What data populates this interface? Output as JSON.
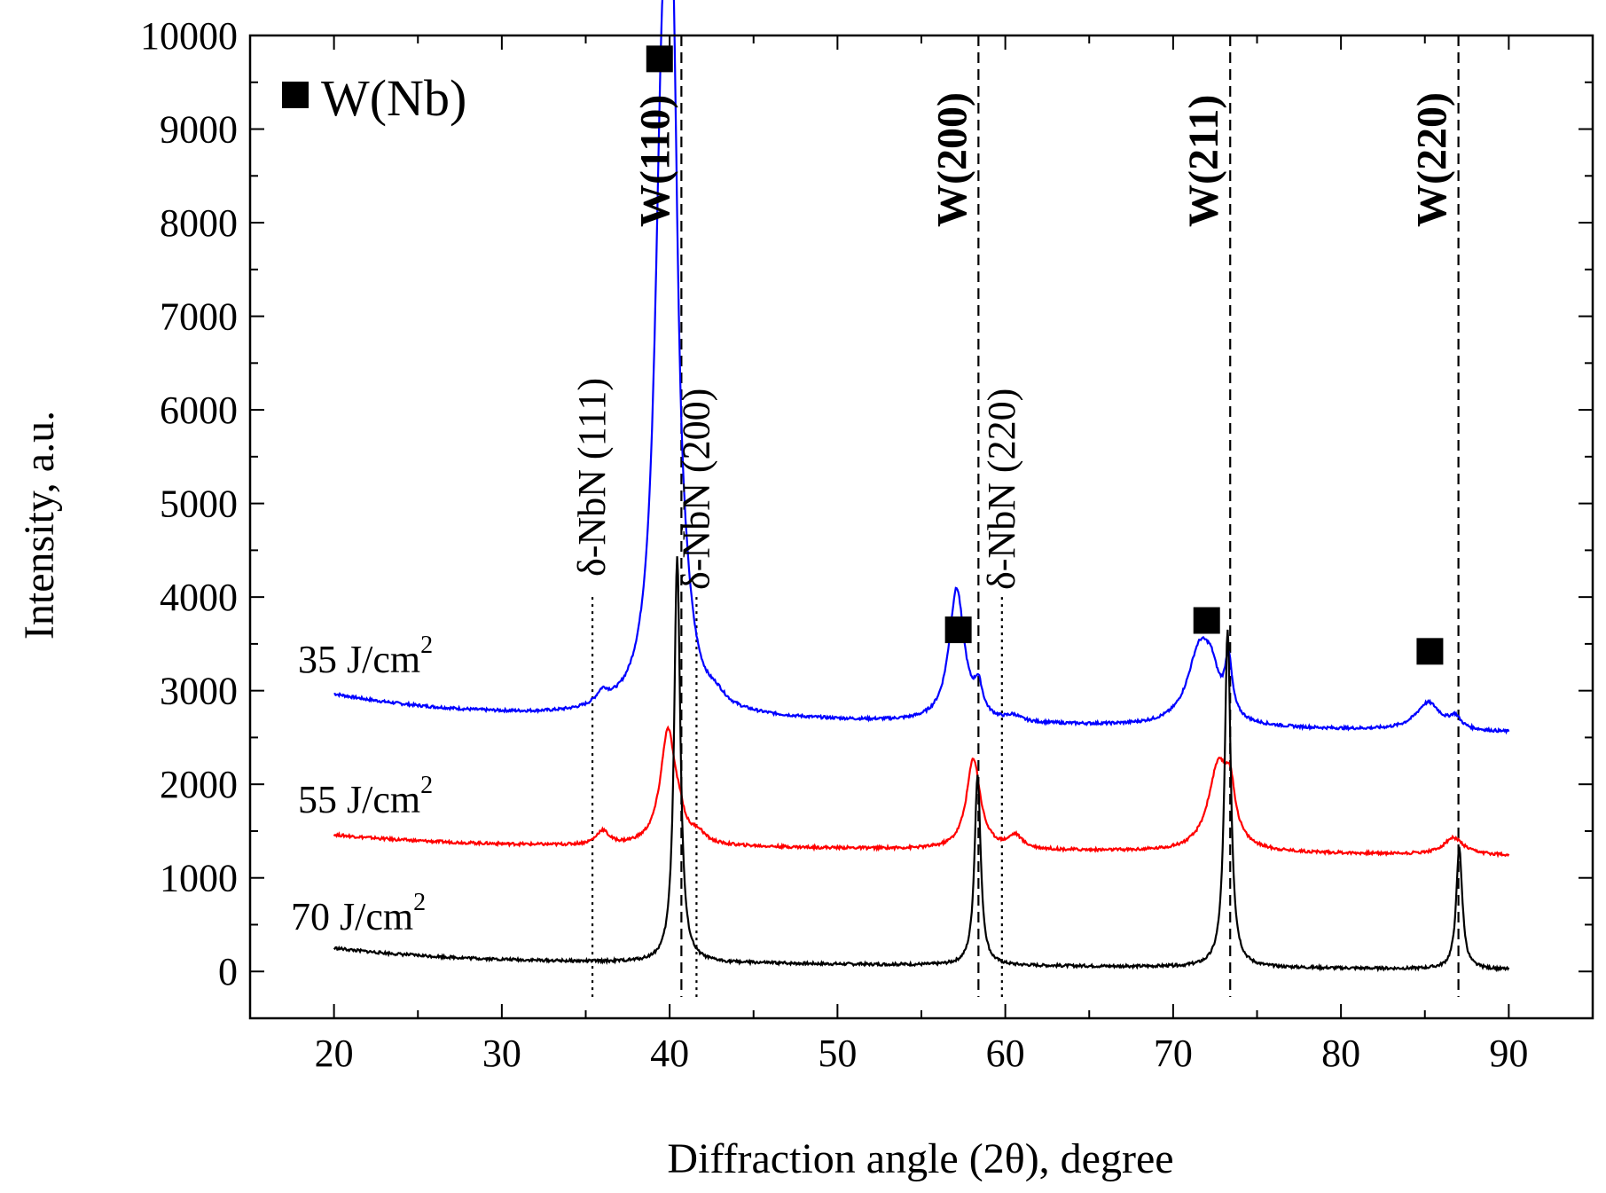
{
  "chart_data": {
    "type": "line",
    "xlabel": "Diffraction angle (2θ), degree",
    "ylabel": "Intensity, a.u.",
    "xlim": [
      15,
      95
    ],
    "ylim": [
      -500,
      10000
    ],
    "xticks": [
      20,
      30,
      40,
      50,
      60,
      70,
      80,
      90
    ],
    "yticks": [
      0,
      1000,
      2000,
      3000,
      4000,
      5000,
      6000,
      7000,
      8000,
      9000,
      10000
    ],
    "legend": {
      "marker": "square",
      "label": "W(Nb)",
      "placement": "top-left"
    },
    "series": [
      {
        "name": "35 J/cm2",
        "label_main": "35 J/cm",
        "label_sup": "2",
        "color": "#0000ff",
        "baseline": {
          "start": 2960,
          "mid": 2680,
          "end": 2550
        },
        "peaks": [
          {
            "x": 36.0,
            "height": 130,
            "width": 0.45
          },
          {
            "x": 39.6,
            "height": 6500,
            "width": 0.55
          },
          {
            "x": 40.2,
            "height": 5000,
            "width": 0.35
          },
          {
            "x": 41.0,
            "height": 300,
            "width": 0.5
          },
          {
            "x": 42.8,
            "height": 90,
            "width": 0.6
          },
          {
            "x": 57.1,
            "height": 1420,
            "width": 0.55
          },
          {
            "x": 58.4,
            "height": 300,
            "width": 0.3
          },
          {
            "x": 60.5,
            "height": 60,
            "width": 0.5
          },
          {
            "x": 71.6,
            "height": 820,
            "width": 0.9
          },
          {
            "x": 72.3,
            "height": 300,
            "width": 0.5
          },
          {
            "x": 73.3,
            "height": 600,
            "width": 0.25
          },
          {
            "x": 85.2,
            "height": 300,
            "width": 0.9
          },
          {
            "x": 86.8,
            "height": 120,
            "width": 0.4
          }
        ]
      },
      {
        "name": "55 J/cm2",
        "label_main": "55 J/cm",
        "label_sup": "2",
        "color": "#ff0000",
        "baseline": {
          "start": 1460,
          "mid": 1320,
          "end": 1240
        },
        "peaks": [
          {
            "x": 36.0,
            "height": 150,
            "width": 0.45
          },
          {
            "x": 39.9,
            "height": 1230,
            "width": 0.55
          },
          {
            "x": 40.6,
            "height": 150,
            "width": 0.3
          },
          {
            "x": 41.7,
            "height": 100,
            "width": 0.5
          },
          {
            "x": 58.1,
            "height": 970,
            "width": 0.5
          },
          {
            "x": 60.6,
            "height": 140,
            "width": 0.5
          },
          {
            "x": 72.7,
            "height": 900,
            "width": 0.75
          },
          {
            "x": 73.4,
            "height": 450,
            "width": 0.35
          },
          {
            "x": 86.7,
            "height": 180,
            "width": 0.7
          }
        ]
      },
      {
        "name": "70 J/cm2",
        "label_main": "70 J/cm",
        "label_sup": "2",
        "color": "#000000",
        "baseline": {
          "start": 250,
          "mid": 80,
          "end": 20
        },
        "peaks": [
          {
            "x": 40.45,
            "height": 4350,
            "width": 0.22
          },
          {
            "x": 58.35,
            "height": 2050,
            "width": 0.22
          },
          {
            "x": 73.25,
            "height": 3620,
            "width": 0.22
          },
          {
            "x": 87.05,
            "height": 1300,
            "width": 0.22
          }
        ]
      }
    ],
    "reference_lines": [
      {
        "label": "W(110)",
        "x": 40.7,
        "style": "dashed"
      },
      {
        "label": "W(200)",
        "x": 58.4,
        "style": "dashed"
      },
      {
        "label": "W(211)",
        "x": 73.4,
        "style": "dashed"
      },
      {
        "label": "W(220)",
        "x": 87.0,
        "style": "dashed"
      },
      {
        "label": "δ-NbN (111)",
        "x": 35.4,
        "style": "dotted"
      },
      {
        "label": "δ-NbN (200)",
        "x": 41.6,
        "style": "dotted"
      },
      {
        "label": "δ-NbN (220)",
        "x": 59.8,
        "style": "dotted"
      }
    ],
    "markers": [
      {
        "x": 39.4,
        "y": 9750
      },
      {
        "x": 57.2,
        "y": 3650
      },
      {
        "x": 72.0,
        "y": 3750
      },
      {
        "x": 85.3,
        "y": 3420
      }
    ]
  }
}
